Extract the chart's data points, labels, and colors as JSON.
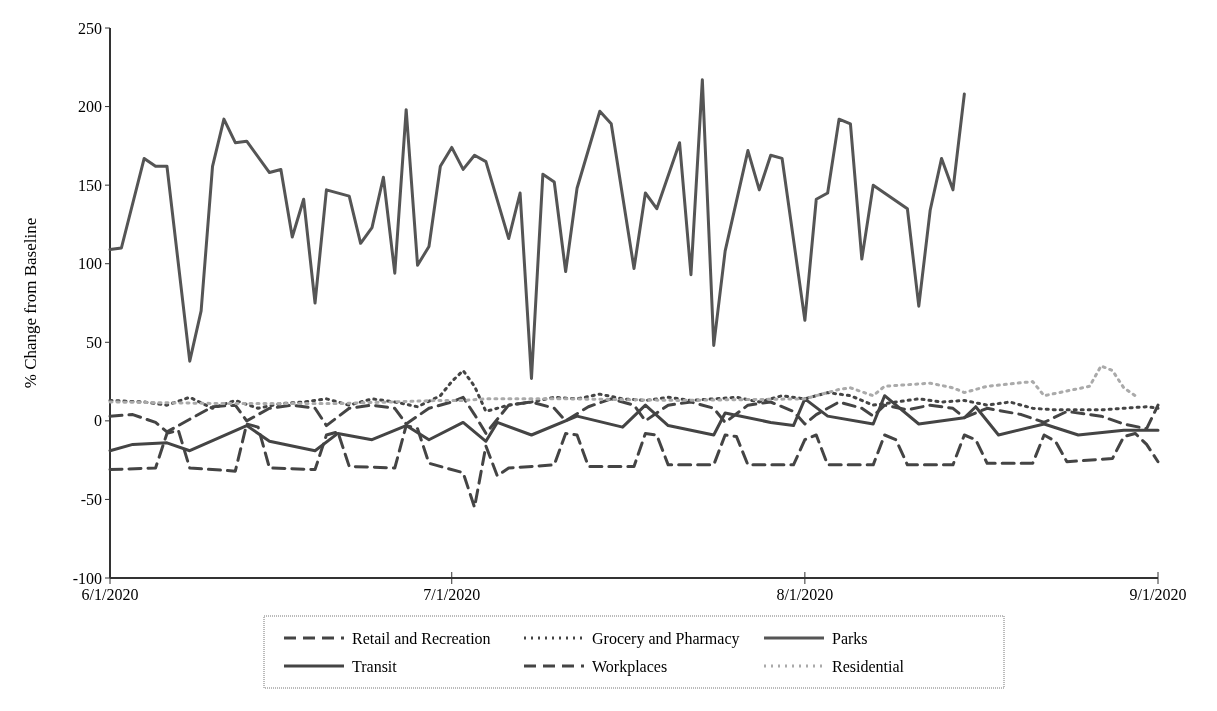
{
  "chart_data": {
    "type": "line",
    "ylabel": "% Change from Baseline",
    "xlim": [
      "2020-06-01",
      "2020-09-01"
    ],
    "xticks": [
      {
        "value": "2020-06-01",
        "label": "6/1/2020"
      },
      {
        "value": "2020-07-01",
        "label": "7/1/2020"
      },
      {
        "value": "2020-08-01",
        "label": "8/1/2020"
      },
      {
        "value": "2020-09-01",
        "label": "9/1/2020"
      }
    ],
    "ylim": [
      -100,
      250
    ],
    "yticks": [
      -100,
      -50,
      0,
      50,
      100,
      150,
      200,
      250
    ],
    "grid": false,
    "legend": "bottom",
    "marker": "none",
    "series": [
      {
        "name": "Retail and Recreation",
        "color": "#444444",
        "line_style": "dashed",
        "x": [
          "2020-06-01",
          "2020-06-03",
          "2020-06-05",
          "2020-06-06",
          "2020-06-08",
          "2020-06-10",
          "2020-06-12",
          "2020-06-13",
          "2020-06-15",
          "2020-06-17",
          "2020-06-19",
          "2020-06-20",
          "2020-06-22",
          "2020-06-24",
          "2020-06-26",
          "2020-06-27",
          "2020-06-29",
          "2020-07-01",
          "2020-07-02",
          "2020-07-03",
          "2020-07-04",
          "2020-07-06",
          "2020-07-08",
          "2020-07-10",
          "2020-07-11",
          "2020-07-13",
          "2020-07-15",
          "2020-07-17",
          "2020-07-18",
          "2020-07-20",
          "2020-07-22",
          "2020-07-24",
          "2020-07-25",
          "2020-07-27",
          "2020-07-29",
          "2020-07-31",
          "2020-08-01",
          "2020-08-02",
          "2020-08-04",
          "2020-08-06",
          "2020-08-07",
          "2020-08-08",
          "2020-08-10",
          "2020-08-12",
          "2020-08-14",
          "2020-08-15",
          "2020-08-17",
          "2020-08-20",
          "2020-08-22",
          "2020-08-24",
          "2020-08-27",
          "2020-08-29",
          "2020-08-31",
          "2020-09-01"
        ],
        "values": [
          3,
          4,
          -1,
          -7,
          1,
          9,
          10,
          0,
          8,
          10,
          8,
          -3,
          8,
          10,
          8,
          -2,
          8,
          12,
          15,
          4,
          -8,
          10,
          12,
          8,
          0,
          9,
          14,
          10,
          0,
          10,
          12,
          8,
          -1,
          10,
          12,
          6,
          -2,
          4,
          12,
          8,
          3,
          10,
          7,
          10,
          8,
          2,
          8,
          4,
          -1,
          6,
          3,
          -2,
          -5,
          10
        ]
      },
      {
        "name": "Grocery and Pharmacy",
        "color": "#444444",
        "line_style": "dotted",
        "x": [
          "2020-06-01",
          "2020-06-04",
          "2020-06-06",
          "2020-06-08",
          "2020-06-10",
          "2020-06-12",
          "2020-06-14",
          "2020-06-16",
          "2020-06-18",
          "2020-06-20",
          "2020-06-22",
          "2020-06-24",
          "2020-06-26",
          "2020-06-28",
          "2020-06-30",
          "2020-07-01",
          "2020-07-02",
          "2020-07-03",
          "2020-07-04",
          "2020-07-06",
          "2020-07-08",
          "2020-07-10",
          "2020-07-12",
          "2020-07-14",
          "2020-07-16",
          "2020-07-18",
          "2020-07-20",
          "2020-07-22",
          "2020-07-24",
          "2020-07-26",
          "2020-07-28",
          "2020-07-30",
          "2020-08-01",
          "2020-08-03",
          "2020-08-05",
          "2020-08-07",
          "2020-08-09",
          "2020-08-11",
          "2020-08-13",
          "2020-08-15",
          "2020-08-17",
          "2020-08-19",
          "2020-08-21",
          "2020-08-23",
          "2020-08-25",
          "2020-08-27",
          "2020-08-29",
          "2020-08-31",
          "2020-09-01"
        ],
        "values": [
          13,
          12,
          10,
          15,
          8,
          13,
          8,
          11,
          12,
          14,
          10,
          14,
          12,
          9,
          16,
          25,
          32,
          22,
          6,
          10,
          12,
          15,
          14,
          17,
          14,
          13,
          15,
          13,
          14,
          15,
          12,
          16,
          14,
          18,
          16,
          10,
          12,
          14,
          12,
          13,
          10,
          12,
          8,
          7,
          7,
          7,
          8,
          9,
          8
        ]
      },
      {
        "name": "Parks",
        "color": "#555555",
        "line_style": "solid",
        "x": [
          "2020-06-01",
          "2020-06-02",
          "2020-06-04",
          "2020-06-05",
          "2020-06-06",
          "2020-06-08",
          "2020-06-09",
          "2020-06-10",
          "2020-06-11",
          "2020-06-12",
          "2020-06-13",
          "2020-06-15",
          "2020-06-16",
          "2020-06-17",
          "2020-06-18",
          "2020-06-19",
          "2020-06-20",
          "2020-06-22",
          "2020-06-23",
          "2020-06-24",
          "2020-06-25",
          "2020-06-26",
          "2020-06-27",
          "2020-06-28",
          "2020-06-29",
          "2020-06-30",
          "2020-07-01",
          "2020-07-02",
          "2020-07-03",
          "2020-07-04",
          "2020-07-06",
          "2020-07-07",
          "2020-07-08",
          "2020-07-09",
          "2020-07-10",
          "2020-07-11",
          "2020-07-12",
          "2020-07-14",
          "2020-07-15",
          "2020-07-17",
          "2020-07-18",
          "2020-07-19",
          "2020-07-21",
          "2020-07-22",
          "2020-07-23",
          "2020-07-24",
          "2020-07-25",
          "2020-07-27",
          "2020-07-28",
          "2020-07-29",
          "2020-07-30",
          "2020-08-01",
          "2020-08-02",
          "2020-08-03",
          "2020-08-04",
          "2020-08-05",
          "2020-08-06",
          "2020-08-07",
          "2020-08-10",
          "2020-08-11",
          "2020-08-12",
          "2020-08-13",
          "2020-08-14",
          "2020-08-15"
        ],
        "values": [
          109,
          110,
          167,
          162,
          162,
          38,
          70,
          162,
          192,
          177,
          178,
          158,
          160,
          117,
          141,
          75,
          147,
          143,
          113,
          123,
          155,
          94,
          198,
          99,
          111,
          162,
          174,
          160,
          169,
          165,
          116,
          145,
          27,
          157,
          152,
          95,
          148,
          197,
          189,
          97,
          145,
          135,
          177,
          93,
          217,
          48,
          108,
          172,
          147,
          169,
          167,
          64,
          141,
          145,
          192,
          189,
          103,
          150,
          135,
          73,
          134,
          167,
          147,
          208
        ]
      },
      {
        "name": "Transit",
        "color": "#444444",
        "line_style": "solid",
        "x": [
          "2020-06-01",
          "2020-06-03",
          "2020-06-06",
          "2020-06-08",
          "2020-06-13",
          "2020-06-15",
          "2020-06-19",
          "2020-06-21",
          "2020-06-24",
          "2020-06-27",
          "2020-06-29",
          "2020-07-02",
          "2020-07-04",
          "2020-07-05",
          "2020-07-08",
          "2020-07-12",
          "2020-07-16",
          "2020-07-18",
          "2020-07-20",
          "2020-07-24",
          "2020-07-25",
          "2020-07-29",
          "2020-07-31",
          "2020-08-01",
          "2020-08-03",
          "2020-08-07",
          "2020-08-08",
          "2020-08-11",
          "2020-08-15",
          "2020-08-16",
          "2020-08-18",
          "2020-08-22",
          "2020-08-25",
          "2020-08-29",
          "2020-09-01"
        ],
        "values": [
          -19,
          -15,
          -14,
          -19,
          -3,
          -13,
          -19,
          -8,
          -12,
          -3,
          -12,
          -1,
          -13,
          -1,
          -9,
          3,
          -4,
          10,
          -3,
          -9,
          5,
          -1,
          -3,
          14,
          3,
          -2,
          16,
          -2,
          2,
          9,
          -9,
          -2,
          -9,
          -6,
          -6
        ]
      },
      {
        "name": "Workplaces",
        "color": "#444444",
        "line_style": "dashed",
        "x": [
          "2020-06-01",
          "2020-06-05",
          "2020-06-06",
          "2020-06-07",
          "2020-06-08",
          "2020-06-12",
          "2020-06-13",
          "2020-06-14",
          "2020-06-15",
          "2020-06-19",
          "2020-06-20",
          "2020-06-21",
          "2020-06-22",
          "2020-06-26",
          "2020-06-27",
          "2020-06-28",
          "2020-06-29",
          "2020-07-02",
          "2020-07-03",
          "2020-07-04",
          "2020-07-05",
          "2020-07-06",
          "2020-07-10",
          "2020-07-11",
          "2020-07-12",
          "2020-07-13",
          "2020-07-17",
          "2020-07-18",
          "2020-07-19",
          "2020-07-20",
          "2020-07-24",
          "2020-07-25",
          "2020-07-26",
          "2020-07-27",
          "2020-07-31",
          "2020-08-01",
          "2020-08-02",
          "2020-08-03",
          "2020-08-07",
          "2020-08-08",
          "2020-08-09",
          "2020-08-10",
          "2020-08-14",
          "2020-08-15",
          "2020-08-16",
          "2020-08-17",
          "2020-08-21",
          "2020-08-22",
          "2020-08-23",
          "2020-08-24",
          "2020-08-28",
          "2020-08-29",
          "2020-08-30",
          "2020-08-31",
          "2020-09-01"
        ],
        "values": [
          -31,
          -30,
          -8,
          -6,
          -30,
          -32,
          -2,
          -4,
          -30,
          -31,
          -9,
          -7,
          -29,
          -30,
          -3,
          -5,
          -27,
          -33,
          -55,
          -16,
          -35,
          -30,
          -28,
          -8,
          -9,
          -29,
          -29,
          -8,
          -9,
          -28,
          -28,
          -9,
          -10,
          -28,
          -28,
          -12,
          -9,
          -28,
          -28,
          -9,
          -12,
          -28,
          -28,
          -9,
          -12,
          -27,
          -27,
          -9,
          -13,
          -26,
          -24,
          -10,
          -8,
          -15,
          -26
        ]
      },
      {
        "name": "Residential",
        "color": "#aaaaaa",
        "line_style": "dotted",
        "x": [
          "2020-06-01",
          "2020-06-11",
          "2020-06-21",
          "2020-06-30",
          "2020-07-02",
          "2020-07-04",
          "2020-07-11",
          "2020-07-21",
          "2020-08-01",
          "2020-08-04",
          "2020-08-05",
          "2020-08-07",
          "2020-08-08",
          "2020-08-12",
          "2020-08-14",
          "2020-08-15",
          "2020-08-17",
          "2020-08-21",
          "2020-08-22",
          "2020-08-26",
          "2020-08-27",
          "2020-08-28",
          "2020-08-29",
          "2020-08-30"
        ],
        "values": [
          12,
          11,
          11,
          13,
          13,
          14,
          14,
          13,
          14,
          20,
          21,
          16,
          22,
          24,
          21,
          18,
          22,
          25,
          16,
          22,
          35,
          32,
          21,
          16
        ]
      }
    ]
  }
}
